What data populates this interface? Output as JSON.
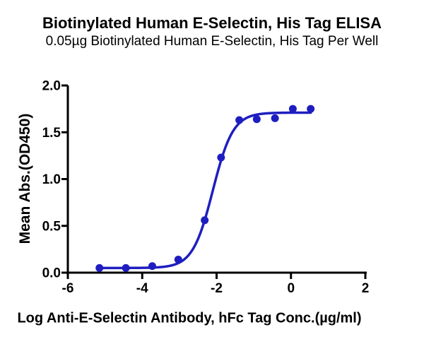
{
  "header": {
    "title": "Biotinylated Human E-Selectin, His Tag ELISA",
    "subtitle": "0.05µg Biotinylated Human E-Selectin, His Tag Per Well"
  },
  "chart_data": {
    "type": "scatter",
    "title": "Biotinylated Human E-Selectin, His Tag ELISA",
    "subtitle": "0.05µg Biotinylated Human E-Selectin, His Tag Per Well",
    "xlabel": "Log Anti-E-Selectin Antibody, hFc Tag Conc.(µg/ml)",
    "ylabel": "Mean Abs.(OD450)",
    "xlim": [
      -6,
      2
    ],
    "ylim": [
      0,
      2
    ],
    "xticks": [
      -6,
      -4,
      -2,
      0,
      2
    ],
    "xtick_labels": [
      "-6",
      "-4",
      "-2",
      "0",
      "2"
    ],
    "yticks": [
      0,
      0.5,
      1.0,
      1.5,
      2.0
    ],
    "ytick_labels": [
      "0.0",
      "0.5",
      "1.0",
      "1.5",
      "2.0"
    ],
    "grid": false,
    "legend_position": "none",
    "axis_color": "#000000",
    "background_color": "#ffffff",
    "series": [
      {
        "name": "Anti-E-Selectin Antibody, hFc Tag",
        "color": "#1e1ec0",
        "marker": "circle",
        "points": {
          "x": [
            -5.15,
            -4.44,
            -3.73,
            -3.03,
            -2.32,
            -1.88,
            -1.39,
            -0.92,
            -0.43,
            0.05,
            0.53
          ],
          "y": [
            0.05,
            0.05,
            0.07,
            0.14,
            0.56,
            1.23,
            1.63,
            1.64,
            1.65,
            1.75,
            1.75
          ]
        },
        "fit_curve": {
          "model": "4PL sigmoidal",
          "bottom": 0.05,
          "top": 1.71,
          "log_ec50": -2.1,
          "hill_slope": 1.6,
          "x_start": -5.15,
          "x_end": 0.53
        }
      }
    ]
  }
}
